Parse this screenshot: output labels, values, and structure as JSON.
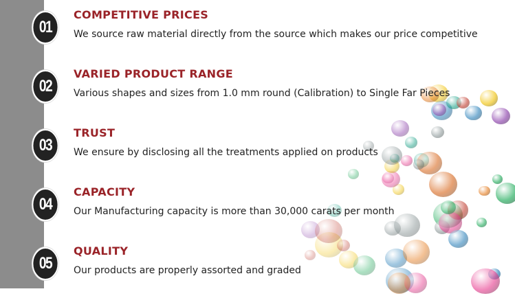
{
  "colors": {
    "accent": "#9a2328",
    "sidebar": "#8c8c8c",
    "badge": "#222222"
  },
  "items": [
    {
      "number": "01",
      "title": "COMPETITIVE PRICES",
      "description": "We source raw material directly from the source which makes our price competitive"
    },
    {
      "number": "02",
      "title": "VARIED PRODUCT RANGE",
      "description": "Various shapes and sizes from 1.0 mm round (Calibration) to Single Far Pieces"
    },
    {
      "number": "03",
      "title": "TRUST",
      "description": "We ensure by disclosing all the treatments applied on products"
    },
    {
      "number": "04",
      "title": "CAPACITY",
      "description": "Our Manufacturing capacity is more than 30,000 carats per month"
    },
    {
      "number": "05",
      "title": "QUALITY",
      "description": "Our products are properly assorted and graded"
    }
  ]
}
